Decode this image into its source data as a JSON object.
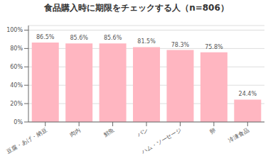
{
  "chart_data": {
    "type": "bar",
    "title": "食品購入時に期限をチェックする人（n=806）",
    "categories": [
      "豆腐・あげ・納豆",
      "肉内",
      "鮮魚",
      "パン",
      "ハム・ソーセージ",
      "卵",
      "冷凍食品"
    ],
    "values": [
      86.5,
      85.6,
      85.6,
      81.5,
      78.3,
      75.8,
      24.4
    ],
    "value_labels": [
      "86.5%",
      "85.6%",
      "85.6%",
      "81.5%",
      "78.3%",
      "75.8%",
      "24.4%"
    ],
    "data_labels": true,
    "color": "#ffb6c1",
    "ylim": [
      0,
      105
    ],
    "yticks": [
      {
        "value": 0,
        "label": "0%"
      },
      {
        "value": 20,
        "label": "20%"
      },
      {
        "value": 40,
        "label": "40%"
      },
      {
        "value": 60,
        "label": "60%"
      },
      {
        "value": 80,
        "label": "80%"
      },
      {
        "value": 100,
        "label": "100%"
      }
    ],
    "grid": true
  }
}
